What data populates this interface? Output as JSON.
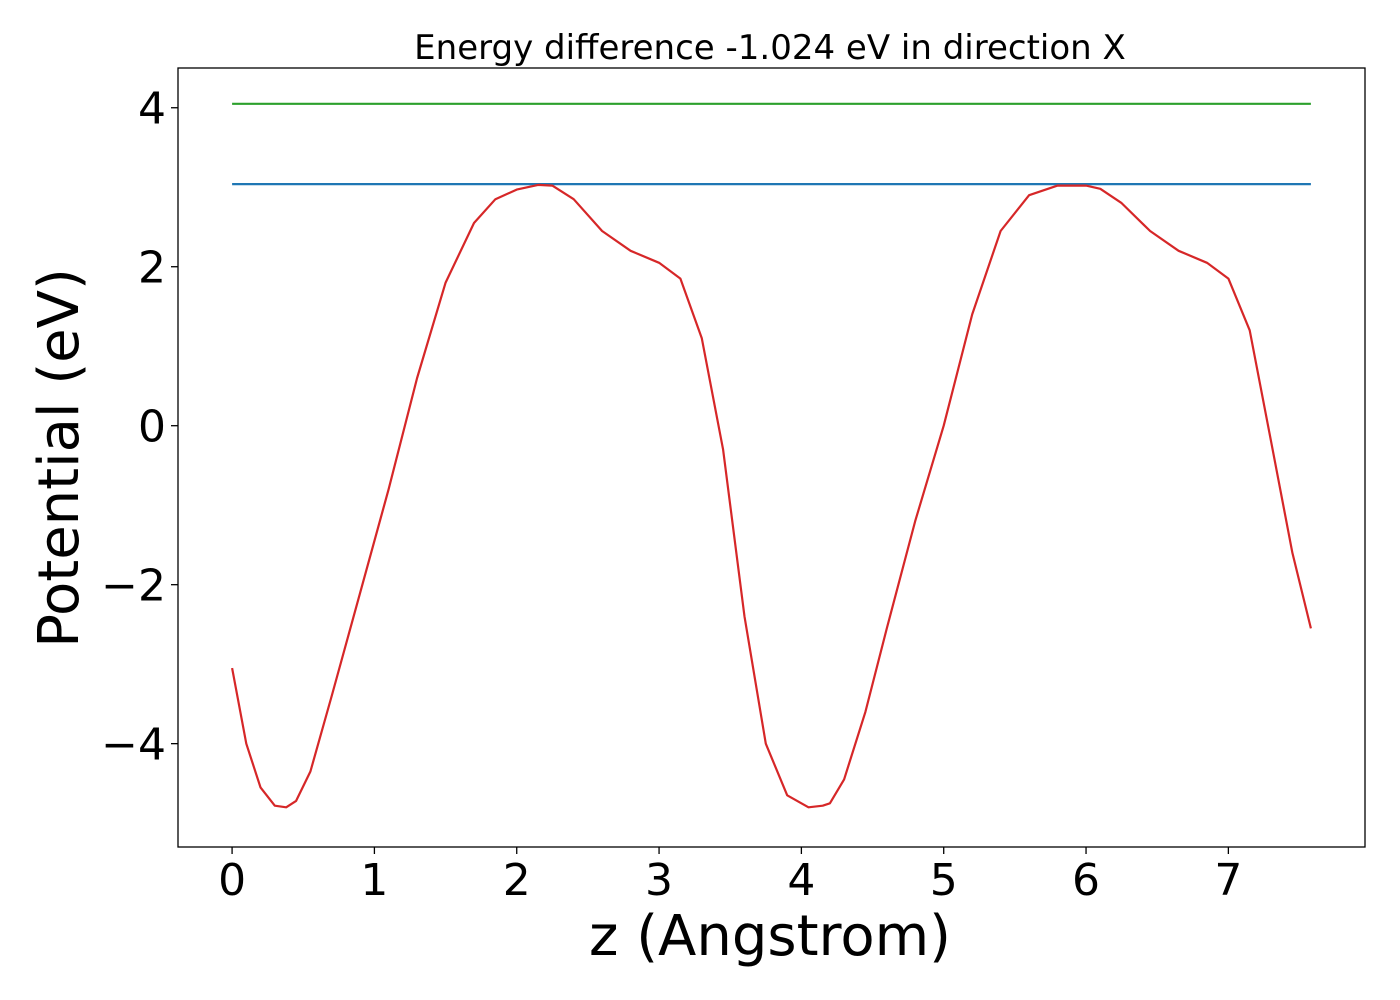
{
  "chart_data": {
    "type": "line",
    "title": "Energy difference -1.024 eV in direction X",
    "xlabel": "z (Angstrom)",
    "ylabel": "Potential (eV)",
    "xlim": [
      -0.38,
      7.96
    ],
    "ylim": [
      -5.3,
      4.5
    ],
    "grid": false,
    "x_ticks": [
      0,
      1,
      2,
      3,
      4,
      5,
      6,
      7
    ],
    "x_tick_labels": [
      "0",
      "1",
      "2",
      "3",
      "4",
      "5",
      "6",
      "7"
    ],
    "y_ticks": [
      4,
      2,
      0,
      -2,
      -4
    ],
    "y_tick_labels": [
      "4",
      "2",
      "0",
      "−2",
      "−4"
    ],
    "series": [
      {
        "color": "#2ca02c",
        "x": [
          0,
          7.58
        ],
        "y": [
          4.05,
          4.05
        ]
      },
      {
        "color": "#1f77b4",
        "x": [
          0,
          7.58
        ],
        "y": [
          3.04,
          3.04
        ]
      },
      {
        "color": "#d62728",
        "x": [
          0,
          0.1,
          0.2,
          0.3,
          0.38,
          0.45,
          0.55,
          0.7,
          0.9,
          1.1,
          1.3,
          1.5,
          1.7,
          1.85,
          2.0,
          2.15,
          2.25,
          2.4,
          2.6,
          2.8,
          3.0,
          3.15,
          3.3,
          3.45,
          3.6,
          3.75,
          3.9,
          4.05,
          4.15,
          4.2,
          4.3,
          4.45,
          4.6,
          4.8,
          5.0,
          5.2,
          5.4,
          5.6,
          5.8,
          6.0,
          6.1,
          6.25,
          6.45,
          6.65,
          6.85,
          7.0,
          7.15,
          7.3,
          7.45,
          7.58
        ],
        "y": [
          -3.05,
          -4.0,
          -4.55,
          -4.78,
          -4.8,
          -4.72,
          -4.35,
          -3.4,
          -2.1,
          -0.8,
          0.6,
          1.8,
          2.55,
          2.85,
          2.97,
          3.03,
          3.02,
          2.85,
          2.45,
          2.2,
          2.05,
          1.85,
          1.1,
          -0.3,
          -2.4,
          -4.0,
          -4.65,
          -4.8,
          -4.78,
          -4.75,
          -4.45,
          -3.6,
          -2.55,
          -1.2,
          0.0,
          1.4,
          2.45,
          2.9,
          3.02,
          3.02,
          2.98,
          2.8,
          2.45,
          2.2,
          2.05,
          1.85,
          1.2,
          -0.2,
          -1.6,
          -2.55
        ]
      }
    ]
  }
}
